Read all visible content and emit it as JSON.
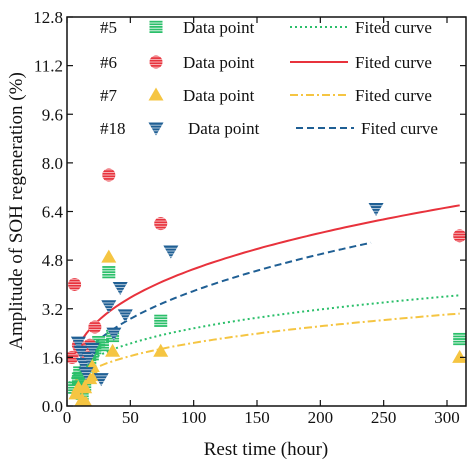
{
  "chart_data": {
    "type": "scatter",
    "xlabel": "Rest time (hour)",
    "ylabel": "Amplitude of SOH regeneration (%)",
    "xlim": [
      0,
      315
    ],
    "ylim": [
      0,
      12.8
    ],
    "xticks": [
      0,
      50,
      100,
      150,
      200,
      250,
      300
    ],
    "yticks": [
      0.0,
      1.6,
      3.2,
      4.8,
      6.4,
      8.0,
      9.6,
      11.2,
      12.8
    ],
    "ytick_labels": [
      "0.0",
      "1.6",
      "3.2",
      "4.8",
      "6.4",
      "8.0",
      "9.6",
      "11.2",
      "12.8"
    ],
    "legend_position": "top-left, inside",
    "grid": false,
    "series": [
      {
        "name": "#5",
        "point_label": "Data point",
        "curve_label": "Fited curve",
        "color": "#2bbf6a",
        "marker": "square-hatched",
        "curve_style": "dotted",
        "points": [
          [
            6,
            0.6
          ],
          [
            9,
            0.9
          ],
          [
            10,
            1.1
          ],
          [
            12,
            0.4
          ],
          [
            14,
            0.7
          ],
          [
            15,
            1.3
          ],
          [
            18,
            1.5
          ],
          [
            20,
            1.7
          ],
          [
            22,
            1.9
          ],
          [
            25,
            2.1
          ],
          [
            28,
            2.0
          ],
          [
            33,
            4.4
          ],
          [
            36,
            2.3
          ],
          [
            74,
            2.8
          ],
          [
            310,
            2.2
          ]
        ],
        "curve": {
          "a": 0.605,
          "b": 0.313,
          "x_start": 2,
          "x_end": 310
        }
      },
      {
        "name": "#6",
        "point_label": "Data point",
        "curve_label": "Fited curve",
        "color": "#e8323c",
        "marker": "circle-hatched",
        "curve_style": "solid",
        "points": [
          [
            4,
            1.6
          ],
          [
            6,
            4.0
          ],
          [
            9,
            2.0
          ],
          [
            10,
            1.9
          ],
          [
            13,
            1.8
          ],
          [
            16,
            1.7
          ],
          [
            18,
            2.0
          ],
          [
            22,
            2.6
          ],
          [
            33,
            7.6
          ],
          [
            74,
            6.0
          ],
          [
            310,
            5.6
          ]
        ],
        "curve": {
          "a": 0.95,
          "b": 0.338,
          "x_start": 8,
          "x_end": 310
        }
      },
      {
        "name": "#7",
        "point_label": "Data point",
        "curve_label": "Fited curve",
        "color": "#f5c542",
        "marker": "triangle-up",
        "curve_style": "dashdot",
        "points": [
          [
            7,
            0.4
          ],
          [
            9,
            0.6
          ],
          [
            12,
            0.2
          ],
          [
            14,
            0.6
          ],
          [
            15,
            0.1
          ],
          [
            18,
            0.9
          ],
          [
            20,
            1.3
          ],
          [
            22,
            1.0
          ],
          [
            33,
            4.9
          ],
          [
            36,
            1.8
          ],
          [
            74,
            1.8
          ],
          [
            310,
            1.6
          ]
        ],
        "curve": {
          "a": 0.44,
          "b": 0.337,
          "x_start": 5,
          "x_end": 310
        }
      },
      {
        "name": "#18",
        "point_label": "Data point",
        "curve_label": "Fited curve",
        "color": "#1f5f94",
        "marker": "triangle-down",
        "curve_style": "dashed",
        "points": [
          [
            9,
            2.1
          ],
          [
            11,
            1.8
          ],
          [
            13,
            1.4
          ],
          [
            15,
            1.1
          ],
          [
            17,
            1.6
          ],
          [
            20,
            1.9
          ],
          [
            27,
            0.9
          ],
          [
            33,
            3.3
          ],
          [
            37,
            2.4
          ],
          [
            42,
            3.9
          ],
          [
            46,
            3.0
          ],
          [
            82,
            5.1
          ],
          [
            244,
            6.5
          ]
        ],
        "curve": {
          "a": 0.6,
          "b": 0.4,
          "x_start": 10,
          "x_end": 240
        }
      }
    ]
  }
}
